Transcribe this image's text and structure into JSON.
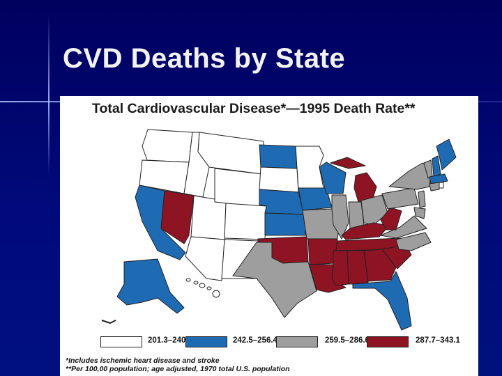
{
  "slide": {
    "title": "CVD Deaths by State"
  },
  "map": {
    "title": "Total Cardiovascular Disease*—1995 Death Rate**",
    "legend": [
      {
        "label": "201.3–240.0",
        "color": "#ffffff"
      },
      {
        "label": "242.5–256.4",
        "color": "#1f6bb3"
      },
      {
        "label": "259.5–286.6",
        "color": "#9e9e9e"
      },
      {
        "label": "287.7–343.1",
        "color": "#8e1424"
      }
    ],
    "footnotes": [
      "*Includes ischemic heart disease and stroke",
      "**Per 100,00 population; age adjusted, 1970 total U.S. population"
    ]
  }
}
